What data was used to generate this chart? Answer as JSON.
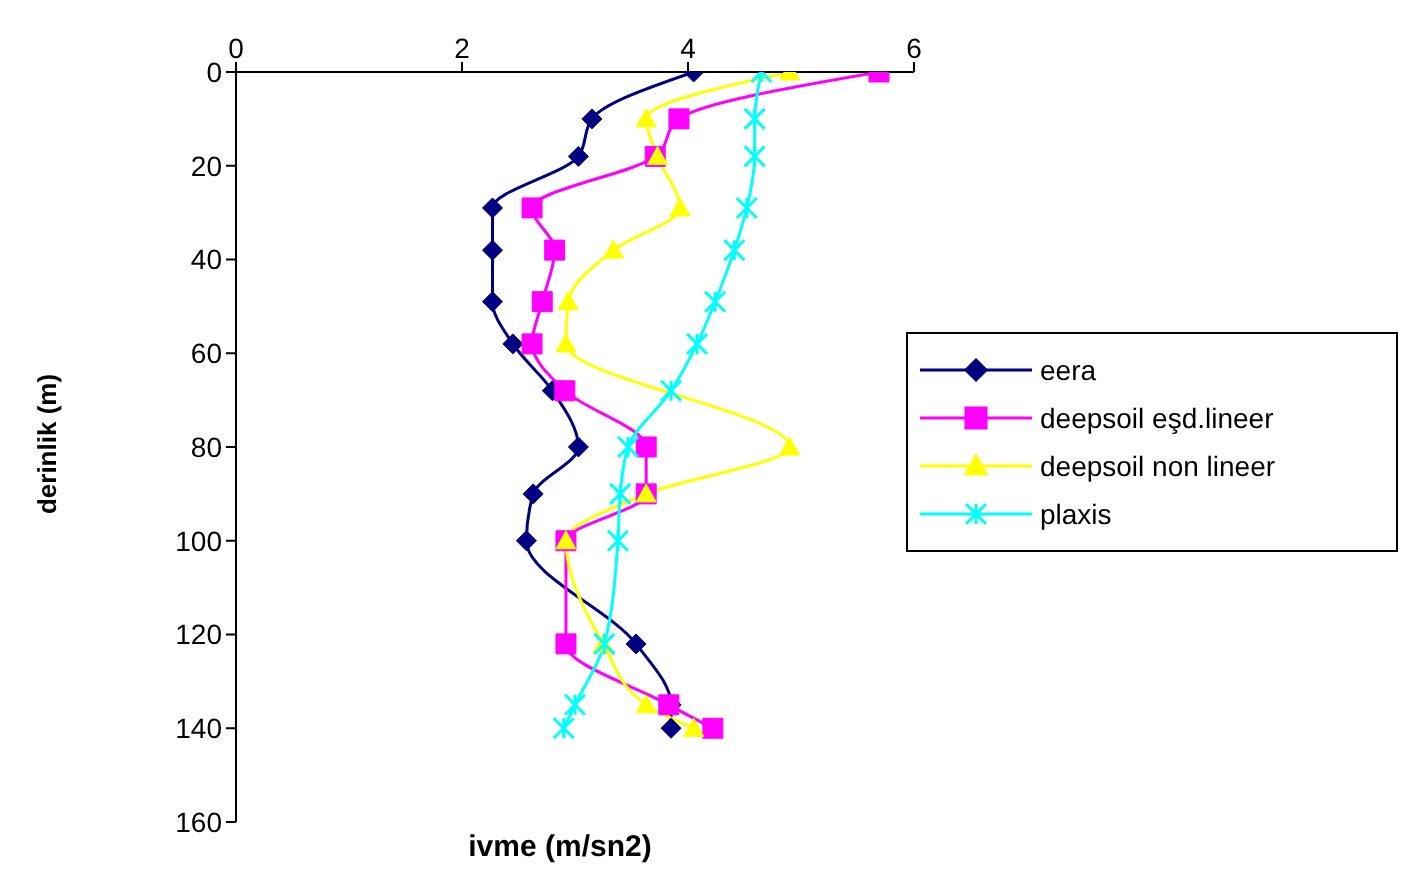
{
  "chart_data": {
    "type": "line",
    "xlabel": "ivme (m/sn2)",
    "ylabel": "derinlik (m)",
    "xlim": [
      0,
      6
    ],
    "xticks": [
      0,
      2,
      4,
      6
    ],
    "ylim": [
      160,
      0
    ],
    "yticks": [
      0,
      20,
      40,
      60,
      80,
      100,
      120,
      140,
      160
    ],
    "legend": "right",
    "line_style": "solid",
    "series": [
      {
        "name": "eera",
        "color": "#000080",
        "marker": "diamond",
        "x": [
          4.05,
          3.15,
          3.03,
          2.27,
          2.27,
          2.27,
          2.45,
          2.8,
          3.03,
          2.63,
          2.57,
          3.54,
          3.85,
          3.85
        ],
        "values": [
          0,
          10,
          18,
          29,
          38,
          49,
          58,
          68,
          80,
          90,
          100,
          122,
          135,
          140
        ]
      },
      {
        "name": "deepsoil eşd.lineer",
        "color": "#ff00ff",
        "marker": "square",
        "x": [
          5.69,
          3.92,
          3.71,
          2.62,
          2.82,
          2.71,
          2.62,
          2.91,
          3.63,
          3.63,
          2.92,
          2.92,
          3.83,
          4.22
        ],
        "values": [
          0,
          10,
          18,
          29,
          38,
          49,
          58,
          68,
          80,
          90,
          100,
          122,
          135,
          140
        ]
      },
      {
        "name": "deepsoil non lineer",
        "color": "#ffff00",
        "marker": "triangle",
        "x": [
          4.9,
          3.63,
          3.73,
          3.93,
          3.34,
          2.94,
          2.92,
          4.9,
          3.63,
          2.92,
          3.25,
          3.63,
          4.05
        ],
        "values": [
          0,
          10,
          18,
          29,
          38,
          49,
          58,
          80,
          90,
          100,
          122,
          135,
          140
        ]
      },
      {
        "name": "plaxis",
        "color": "#00ffff",
        "marker": "cross",
        "x": [
          4.65,
          4.59,
          4.59,
          4.52,
          4.41,
          4.24,
          4.08,
          3.85,
          3.47,
          3.4,
          3.38,
          3.26,
          3.0,
          2.9
        ],
        "values": [
          0,
          10,
          18,
          29,
          38,
          49,
          58,
          68,
          80,
          90,
          100,
          122,
          135,
          140
        ]
      }
    ]
  }
}
